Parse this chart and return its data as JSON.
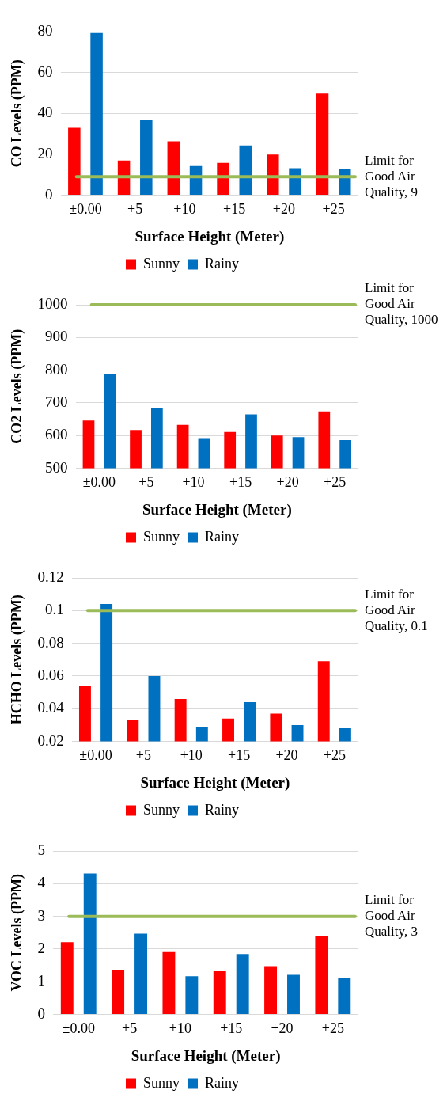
{
  "chart_data": [
    {
      "type": "bar",
      "categories": [
        "±0.00",
        "+5",
        "+10",
        "+15",
        "+20",
        "+25"
      ],
      "xlabel": "Surface Height (Meter)",
      "ylabel": "CO Levels (PPM)",
      "ylim": [
        0,
        80
      ],
      "yticks": [
        0,
        20,
        40,
        60,
        80
      ],
      "grid": "y",
      "legend": "bottom",
      "series": [
        {
          "name": "Sunny",
          "color": "#ff0000",
          "values": [
            33,
            17,
            26.4,
            15.8,
            19.9,
            49.7
          ]
        },
        {
          "name": "Rainy",
          "color": "#0070c0",
          "values": [
            79.3,
            36.9,
            14.3,
            24.3,
            13.2,
            12.6
          ]
        }
      ],
      "ref_lines": [
        {
          "axis": "y",
          "value": 9,
          "label": "Limit for Good Air Quality, 9",
          "color": "#9bbb59"
        }
      ]
    },
    {
      "type": "bar",
      "categories": [
        "±0.00",
        "+5",
        "+10",
        "+15",
        "+20",
        "+25"
      ],
      "xlabel": "Surface Height (Meter)",
      "ylabel": "CO2 Levels (PPM)",
      "ylim": [
        500,
        1000
      ],
      "yticks": [
        500,
        600,
        700,
        800,
        900,
        1000
      ],
      "grid": "y",
      "legend": "bottom",
      "series": [
        {
          "name": "Sunny",
          "color": "#ff0000",
          "values": [
            646,
            617,
            633,
            611,
            600,
            674
          ]
        },
        {
          "name": "Rainy",
          "color": "#0070c0",
          "values": [
            787,
            684,
            592,
            665,
            595,
            586
          ]
        }
      ],
      "ref_lines": [
        {
          "axis": "y",
          "value": 1000,
          "label": "Limit for Good Air Quality, 1000",
          "color": "#9bbb59"
        }
      ]
    },
    {
      "type": "bar",
      "categories": [
        "±0.00",
        "+5",
        "+10",
        "+15",
        "+20",
        "+25"
      ],
      "xlabel": "Surface Height (Meter)",
      "ylabel": "HCHO Levels (PPM)",
      "ylim": [
        0.02,
        0.12
      ],
      "yticks": [
        0.02,
        0.04,
        0.06,
        0.08,
        0.1,
        0.12
      ],
      "grid": "y",
      "legend": "bottom",
      "series": [
        {
          "name": "Sunny",
          "color": "#ff0000",
          "values": [
            0.054,
            0.033,
            0.046,
            0.034,
            0.037,
            0.069
          ]
        },
        {
          "name": "Rainy",
          "color": "#0070c0",
          "values": [
            0.104,
            0.06,
            0.029,
            0.044,
            0.03,
            0.028
          ]
        }
      ],
      "ref_lines": [
        {
          "axis": "y",
          "value": 0.1,
          "label": "Limit for Good Air Quality, 0.1",
          "color": "#9bbb59"
        }
      ]
    },
    {
      "type": "bar",
      "categories": [
        "±0.00",
        "+5",
        "+10",
        "+15",
        "+20",
        "+25"
      ],
      "xlabel": "Surface Height (Meter)",
      "ylabel": "VOC Levels (PPM)",
      "ylim": [
        0,
        5
      ],
      "yticks": [
        0,
        1,
        2,
        3,
        4,
        5
      ],
      "grid": "y",
      "legend": "bottom",
      "series": [
        {
          "name": "Sunny",
          "color": "#ff0000",
          "values": [
            2.21,
            1.35,
            1.91,
            1.32,
            1.48,
            2.41
          ]
        },
        {
          "name": "Rainy",
          "color": "#0070c0",
          "values": [
            4.31,
            2.47,
            1.17,
            1.85,
            1.21,
            1.12
          ]
        }
      ],
      "ref_lines": [
        {
          "axis": "y",
          "value": 3,
          "label": "Limit for Good Air Quality, 3",
          "color": "#9bbb59"
        }
      ]
    }
  ]
}
